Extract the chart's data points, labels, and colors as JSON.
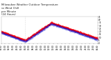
{
  "title": "Milwaukee Weather Outdoor Temperature\nvs Wind Chill\nper Minute\n(24 Hours)",
  "bg_color": "#ffffff",
  "dot_color": "#ff0000",
  "dot_color2": "#0000cc",
  "vline_color": "#bbbbbb",
  "ylim": [
    0,
    45
  ],
  "xlim": [
    0,
    1440
  ],
  "title_fontsize": 2.8,
  "tick_fontsize": 2.0,
  "vline_x1": 360,
  "vline_x2": 360,
  "markersize": 0.6,
  "figsize": [
    1.6,
    0.87
  ],
  "dpi": 100
}
